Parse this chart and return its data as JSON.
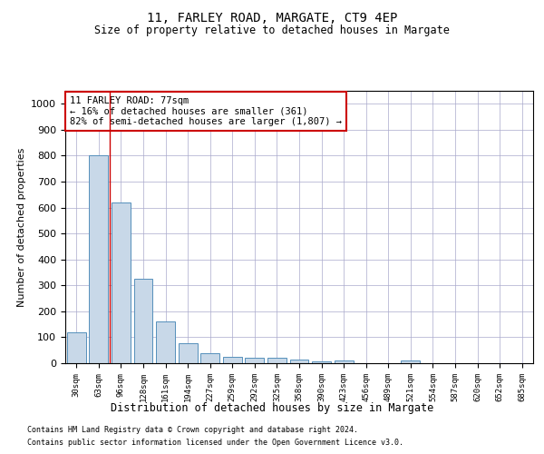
{
  "title1": "11, FARLEY ROAD, MARGATE, CT9 4EP",
  "title2": "Size of property relative to detached houses in Margate",
  "xlabel": "Distribution of detached houses by size in Margate",
  "ylabel": "Number of detached properties",
  "footnote1": "Contains HM Land Registry data © Crown copyright and database right 2024.",
  "footnote2": "Contains public sector information licensed under the Open Government Licence v3.0.",
  "categories": [
    "30sqm",
    "63sqm",
    "96sqm",
    "128sqm",
    "161sqm",
    "194sqm",
    "227sqm",
    "259sqm",
    "292sqm",
    "325sqm",
    "358sqm",
    "390sqm",
    "423sqm",
    "456sqm",
    "489sqm",
    "521sqm",
    "554sqm",
    "587sqm",
    "620sqm",
    "652sqm",
    "685sqm"
  ],
  "values": [
    120,
    800,
    620,
    325,
    160,
    78,
    38,
    25,
    22,
    20,
    14,
    8,
    10,
    0,
    0,
    10,
    0,
    0,
    0,
    0,
    0
  ],
  "bar_color": "#c8d8e8",
  "bar_edge_color": "#5590bb",
  "red_line_x": 1.5,
  "annotation_text": "11 FARLEY ROAD: 77sqm\n← 16% of detached houses are smaller (361)\n82% of semi-detached houses are larger (1,807) →",
  "annotation_box_color": "#ffffff",
  "annotation_box_edge": "#cc0000",
  "ylim": [
    0,
    1050
  ],
  "yticks": [
    0,
    100,
    200,
    300,
    400,
    500,
    600,
    700,
    800,
    900,
    1000
  ],
  "grid_color": "#aaaacc",
  "background_color": "#ffffff",
  "bar_width": 0.85
}
